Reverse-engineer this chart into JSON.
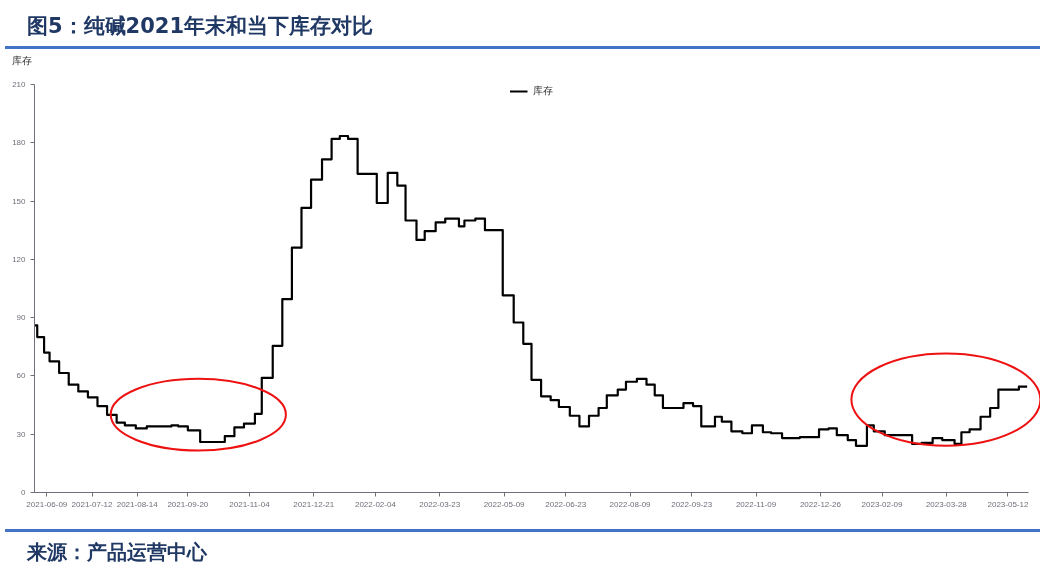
{
  "chart_data": {
    "type": "step",
    "title": "图5：纯碱2021年末和当下库存对比",
    "ylabel": "库存",
    "annotations": [
      "来源：产品运营中心"
    ],
    "x": [
      "2021-05-31",
      "2021-06-02",
      "2021-06-07",
      "2021-06-11",
      "2021-06-18",
      "2021-06-25",
      "2021-07-02",
      "2021-07-09",
      "2021-07-16",
      "2021-07-23",
      "2021-07-30",
      "2021-08-05",
      "2021-08-13",
      "2021-08-21",
      "2021-09-08",
      "2021-09-13",
      "2021-09-20",
      "2021-09-29",
      "2021-10-17",
      "2021-10-24",
      "2021-10-31",
      "2021-11-08",
      "2021-11-13",
      "2021-11-21",
      "2021-11-28",
      "2021-12-05",
      "2021-12-12",
      "2021-12-19",
      "2021-12-27",
      "2022-01-03",
      "2022-01-09",
      "2022-01-15",
      "2022-01-22",
      "2022-02-05",
      "2022-02-13",
      "2022-02-20",
      "2022-02-26",
      "2022-03-06",
      "2022-03-12",
      "2022-03-20",
      "2022-03-27",
      "2022-04-06",
      "2022-04-10",
      "2022-04-18",
      "2022-04-25",
      "2022-05-08",
      "2022-05-16",
      "2022-05-23",
      "2022-05-29",
      "2022-06-05",
      "2022-06-12",
      "2022-06-18",
      "2022-06-26",
      "2022-07-03",
      "2022-07-10",
      "2022-07-17",
      "2022-07-23",
      "2022-07-31",
      "2022-08-06",
      "2022-08-14",
      "2022-08-21",
      "2022-08-27",
      "2022-09-02",
      "2022-09-17",
      "2022-09-24",
      "2022-09-30",
      "2022-10-10",
      "2022-10-15",
      "2022-10-22",
      "2022-10-30",
      "2022-11-06",
      "2022-11-14",
      "2022-11-20",
      "2022-11-28",
      "2022-12-11",
      "2022-12-25",
      "2023-01-01",
      "2023-01-07",
      "2023-01-15",
      "2023-01-21",
      "2023-01-29",
      "2023-02-03",
      "2023-02-11",
      "2023-03-03",
      "2023-03-10",
      "2023-03-18",
      "2023-03-25",
      "2023-04-03",
      "2023-04-08",
      "2023-04-14",
      "2023-04-22",
      "2023-04-29",
      "2023-05-05",
      "2023-05-20",
      "2023-05-26"
    ],
    "series": [
      {
        "name": "库存",
        "color": "#000000",
        "values": [
          86,
          80,
          72,
          67.5,
          61.5,
          55.5,
          52,
          49,
          44.5,
          40,
          36,
          34.5,
          33,
          34,
          34.5,
          34,
          32,
          26,
          29,
          33.5,
          35.5,
          40.5,
          59,
          75.5,
          99.5,
          126,
          146.5,
          161,
          171.5,
          182,
          183.5,
          182,
          164,
          149,
          164.5,
          158,
          140,
          130,
          134.5,
          139,
          141,
          137,
          140,
          141,
          135,
          101.5,
          87.5,
          76.5,
          58,
          49.5,
          47.5,
          44,
          39.5,
          34,
          39.5,
          43.5,
          50,
          53,
          57,
          58.5,
          55.5,
          50,
          43.5,
          46,
          44.5,
          34,
          39,
          36.5,
          31.5,
          30.5,
          34.5,
          31,
          30.5,
          28,
          28.5,
          32.5,
          33,
          29.5,
          27,
          24,
          34.5,
          31.5,
          29.5,
          25,
          25.5,
          28,
          27,
          25,
          31,
          32.5,
          39,
          43.5,
          53,
          54.5,
          54.5
        ]
      }
    ],
    "xlim": [
      "2021-05-31",
      "2023-05-27"
    ],
    "xticks": [
      "2021-06-09",
      "2021-07-12",
      "2021-08-14",
      "2021-09-20",
      "2021-11-04",
      "2021-12-21",
      "2022-02-04",
      "2022-03-23",
      "2022-05-09",
      "2022-06-23",
      "2022-08-09",
      "2022-09-23",
      "2022-11-09",
      "2022-12-26",
      "2023-02-09",
      "2023-03-28",
      "2023-05-12"
    ],
    "ylim": [
      0,
      210
    ],
    "yticks": [
      0,
      30,
      60,
      90,
      120,
      150,
      180,
      210
    ],
    "legend": "top",
    "grid": false,
    "line_style": "solid"
  }
}
